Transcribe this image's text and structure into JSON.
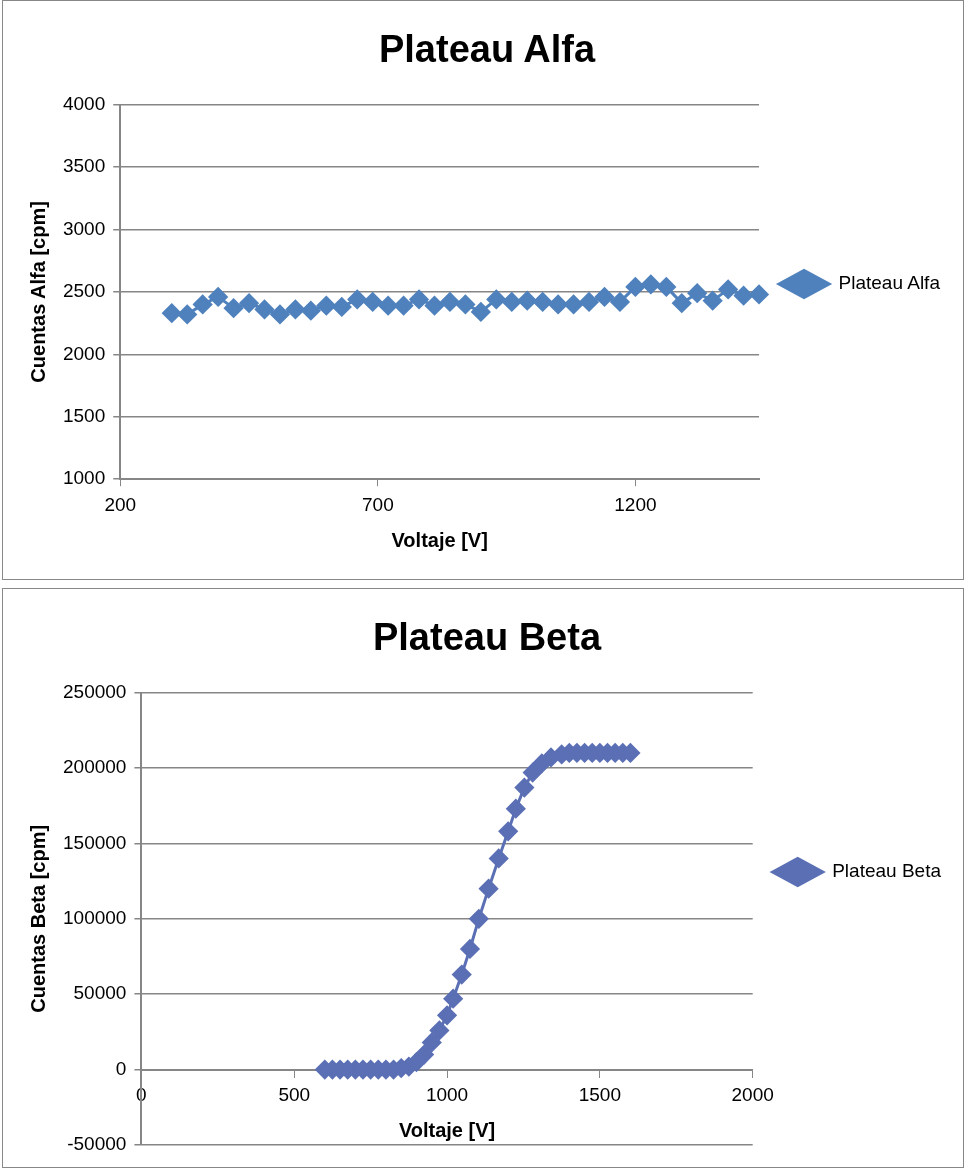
{
  "chart_data": [
    {
      "type": "line",
      "title": "Plateau Alfa",
      "xlabel": "Voltaje [V]",
      "ylabel": "Cuentas Alfa [cpm]",
      "xlim": [
        200,
        1440
      ],
      "xticks": [
        200,
        700,
        1200
      ],
      "ylim": [
        1000,
        4000
      ],
      "yticks": [
        1000,
        1500,
        2000,
        2500,
        3000,
        3500,
        4000
      ],
      "grid": "y",
      "legend": "right",
      "marker": "diamond",
      "line_style": "solid",
      "series": [
        {
          "name": "Plateau Alfa",
          "color": "#4f81bd",
          "x": [
            300,
            330,
            360,
            390,
            420,
            450,
            480,
            510,
            540,
            570,
            600,
            630,
            660,
            690,
            720,
            750,
            780,
            810,
            840,
            870,
            900,
            930,
            960,
            990,
            1020,
            1050,
            1080,
            1110,
            1140,
            1170,
            1200,
            1230,
            1260,
            1290,
            1320,
            1350,
            1380,
            1410,
            1440
          ],
          "values": [
            2330,
            2320,
            2400,
            2460,
            2370,
            2410,
            2360,
            2320,
            2360,
            2350,
            2390,
            2380,
            2440,
            2420,
            2390,
            2390,
            2440,
            2390,
            2420,
            2400,
            2340,
            2440,
            2420,
            2430,
            2420,
            2400,
            2400,
            2420,
            2460,
            2420,
            2540,
            2560,
            2540,
            2410,
            2490,
            2430,
            2520,
            2470,
            2480
          ]
        }
      ]
    },
    {
      "type": "line",
      "title": "Plateau Beta",
      "xlabel": "Voltaje [V]",
      "ylabel": "Cuentas Beta [cpm]",
      "xlim": [
        0,
        2000
      ],
      "xticks": [
        0,
        500,
        1000,
        1500,
        2000
      ],
      "ylim": [
        -50000,
        250000
      ],
      "yticks": [
        -50000,
        0,
        50000,
        100000,
        150000,
        200000,
        250000
      ],
      "grid": "y",
      "legend": "right",
      "marker": "diamond",
      "line_style": "solid",
      "series": [
        {
          "name": "Plateau Beta",
          "color": "#5b6fb5",
          "x": [
            600,
            625,
            650,
            675,
            700,
            725,
            750,
            775,
            800,
            825,
            850,
            875,
            900,
            925,
            950,
            975,
            1000,
            1020,
            1048,
            1075,
            1104,
            1136,
            1169,
            1200,
            1225,
            1253,
            1280,
            1310,
            1340,
            1375,
            1400,
            1425,
            1450,
            1475,
            1500,
            1525,
            1550,
            1575,
            1600
          ],
          "values": [
            0,
            0,
            0,
            0,
            0,
            0,
            0,
            0,
            0,
            0,
            1000,
            2000,
            5000,
            10000,
            18000,
            26000,
            36000,
            47000,
            63000,
            80000,
            100000,
            120000,
            140000,
            158000,
            173000,
            187000,
            197000,
            203000,
            207000,
            209000,
            210000,
            210000,
            210000,
            210000,
            210000,
            210000,
            210000,
            210000,
            210000
          ]
        }
      ]
    }
  ]
}
